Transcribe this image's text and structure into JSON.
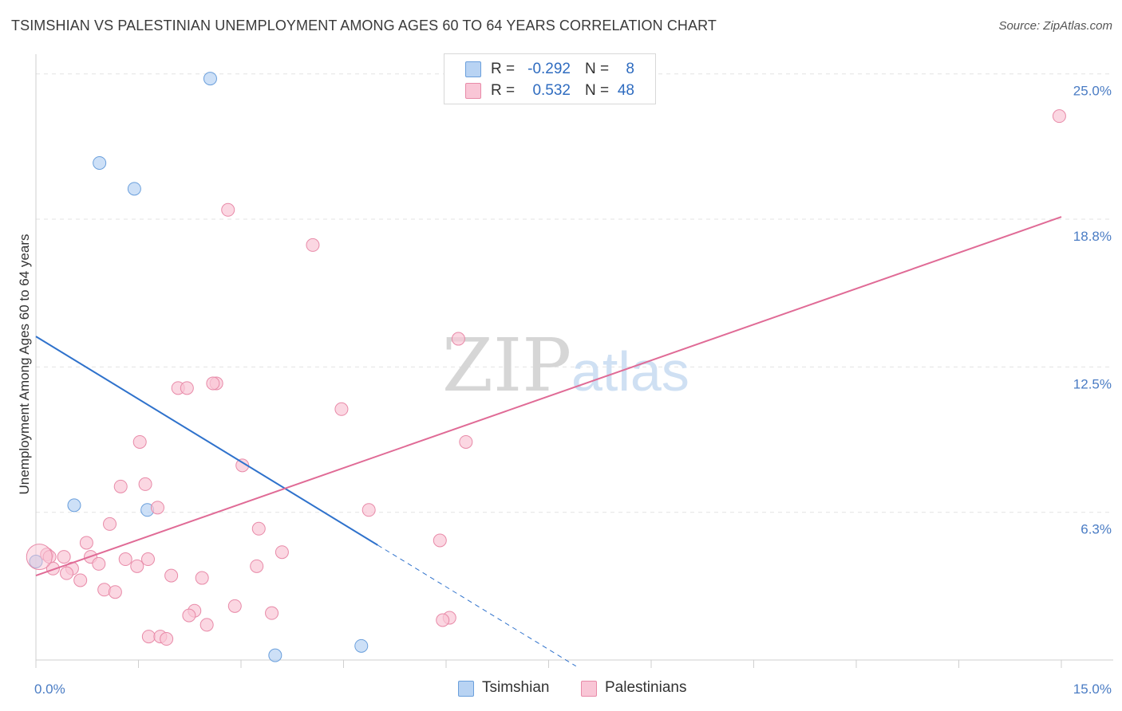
{
  "header": {
    "title": "TSIMSHIAN VS PALESTINIAN UNEMPLOYMENT AMONG AGES 60 TO 64 YEARS CORRELATION CHART",
    "source": "Source: ZipAtlas.com"
  },
  "legend": {
    "r_label": "R =",
    "n_label": "N =",
    "rows": [
      {
        "r": "-0.292",
        "n": "8",
        "fill": "#b8d3f3",
        "stroke": "#6a9fdc"
      },
      {
        "r": "0.532",
        "n": "48",
        "fill": "#f9c6d6",
        "stroke": "#e88aa8"
      }
    ]
  },
  "bottom_legend": [
    {
      "label": "Tsimshian",
      "fill": "#b8d3f3",
      "stroke": "#6a9fdc"
    },
    {
      "label": "Palestinians",
      "fill": "#f9c6d6",
      "stroke": "#e88aa8"
    }
  ],
  "watermark": {
    "zip": "ZIP",
    "atlas": "atlas"
  },
  "chart_data": {
    "type": "scatter",
    "title": "TSIMSHIAN VS PALESTINIAN UNEMPLOYMENT AMONG AGES 60 TO 64 YEARS CORRELATION CHART",
    "xlabel": "",
    "ylabel": "Unemployment Among Ages 60 to 64 years",
    "xlim": [
      0,
      15
    ],
    "ylim": [
      0,
      25.5
    ],
    "x_tick_labels": [
      {
        "value": 0,
        "label": "0.0%"
      },
      {
        "value": 15,
        "label": "15.0%"
      }
    ],
    "y_tick_labels": [
      {
        "value": 6.3,
        "label": "6.3%"
      },
      {
        "value": 12.5,
        "label": "12.5%"
      },
      {
        "value": 18.8,
        "label": "18.8%"
      },
      {
        "value": 25.0,
        "label": "25.0%"
      }
    ],
    "series": [
      {
        "name": "Tsimshian",
        "color": "#6a9fdc",
        "fill": "#b8d3f3",
        "trend_color": "#2f72cc",
        "points": [
          [
            2.55,
            24.8
          ],
          [
            0.93,
            21.2
          ],
          [
            1.44,
            20.1
          ],
          [
            0.0,
            4.2
          ],
          [
            0.56,
            6.6
          ],
          [
            1.63,
            6.4
          ],
          [
            3.5,
            0.2
          ],
          [
            4.76,
            0.6
          ]
        ],
        "trend": {
          "x0": 0.0,
          "y0": 13.8,
          "x1": 5.0,
          "y1": 4.9,
          "dash_to_x": 7.9
        }
      },
      {
        "name": "Palestinians",
        "color": "#e88aa8",
        "fill": "#f9c6d6",
        "trend_color": "#e06b96",
        "points": [
          [
            14.97,
            23.2
          ],
          [
            2.81,
            19.2
          ],
          [
            4.05,
            17.7
          ],
          [
            6.18,
            13.7
          ],
          [
            2.64,
            11.8
          ],
          [
            2.59,
            11.8
          ],
          [
            2.08,
            11.6
          ],
          [
            2.21,
            11.6
          ],
          [
            4.47,
            10.7
          ],
          [
            1.52,
            9.3
          ],
          [
            6.29,
            9.3
          ],
          [
            3.02,
            8.3
          ],
          [
            1.6,
            7.5
          ],
          [
            1.24,
            7.4
          ],
          [
            1.78,
            6.5
          ],
          [
            4.87,
            6.4
          ],
          [
            1.08,
            5.8
          ],
          [
            3.26,
            5.6
          ],
          [
            5.91,
            5.1
          ],
          [
            0.74,
            5.0
          ],
          [
            3.6,
            4.6
          ],
          [
            0.16,
            4.5
          ],
          [
            0.41,
            4.4
          ],
          [
            0.2,
            4.4
          ],
          [
            0.8,
            4.4
          ],
          [
            1.31,
            4.3
          ],
          [
            1.64,
            4.3
          ],
          [
            0.92,
            4.1
          ],
          [
            1.48,
            4.0
          ],
          [
            3.23,
            4.0
          ],
          [
            0.53,
            3.9
          ],
          [
            0.25,
            3.9
          ],
          [
            0.45,
            3.7
          ],
          [
            1.98,
            3.6
          ],
          [
            2.43,
            3.5
          ],
          [
            0.65,
            3.4
          ],
          [
            1.0,
            3.0
          ],
          [
            1.16,
            2.9
          ],
          [
            2.91,
            2.3
          ],
          [
            3.45,
            2.0
          ],
          [
            2.32,
            2.1
          ],
          [
            2.24,
            1.9
          ],
          [
            6.05,
            1.8
          ],
          [
            5.95,
            1.7
          ],
          [
            2.5,
            1.5
          ],
          [
            1.65,
            1.0
          ],
          [
            1.82,
            1.0
          ],
          [
            1.91,
            0.9
          ]
        ],
        "trend": {
          "x0": 0.0,
          "y0": 3.6,
          "x1": 15.0,
          "y1": 18.9
        }
      }
    ]
  }
}
